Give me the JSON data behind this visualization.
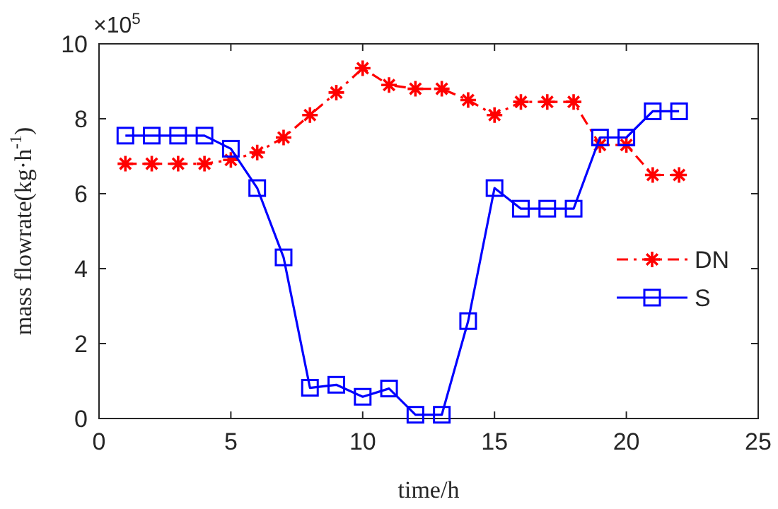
{
  "chart_data": {
    "type": "line",
    "xlabel": "time/h",
    "ylabel": "mass flowrate(kg·h$^{-1}$)",
    "annotations": [
      "×10$^{5}$"
    ],
    "x": [
      1,
      2,
      3,
      4,
      5,
      6,
      7,
      8,
      9,
      10,
      11,
      12,
      13,
      14,
      15,
      16,
      17,
      18,
      19,
      20,
      21,
      22
    ],
    "series": [
      {
        "name": "DN",
        "color": "#ff0000",
        "marker": "cross",
        "line_style": "dashed",
        "values": [
          6.8,
          6.8,
          6.8,
          6.8,
          6.9,
          7.1,
          7.5,
          8.1,
          8.7,
          9.35,
          8.9,
          8.8,
          8.8,
          8.5,
          8.1,
          8.45,
          8.45,
          8.45,
          7.3,
          7.3,
          6.5,
          6.5
        ]
      },
      {
        "name": "S",
        "color": "#0000ff",
        "marker": "square",
        "line_style": "solid",
        "values": [
          7.55,
          7.55,
          7.55,
          7.55,
          7.2,
          6.15,
          4.3,
          0.82,
          0.9,
          0.58,
          0.8,
          0.1,
          0.1,
          2.6,
          6.15,
          5.6,
          5.6,
          5.6,
          7.5,
          7.5,
          8.2,
          8.2
        ]
      }
    ],
    "xlim": [
      0,
      25
    ],
    "xticks": [
      0,
      5,
      10,
      15,
      20,
      25
    ],
    "ylim": [
      0,
      10
    ],
    "yticks": [
      0,
      2,
      4,
      6,
      8,
      10
    ],
    "grid": false,
    "legend": "right"
  }
}
